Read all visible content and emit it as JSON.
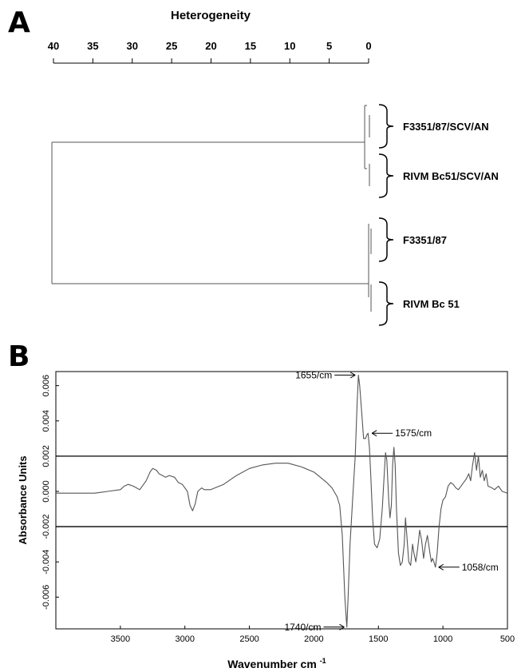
{
  "panels": {
    "a_letter": "A",
    "b_letter": "B"
  },
  "chart_data": [
    {
      "type": "dendrogram",
      "panel": "A",
      "axis_title": "Heterogeneity",
      "axis_ticks": [
        "40",
        "35",
        "30",
        "25",
        "20",
        "15",
        "10",
        "5",
        "0"
      ],
      "axis_range": [
        40,
        0
      ],
      "leaves": [
        "F3351/87/SCV/AN",
        "RIVM Bc51/SCV/AN",
        "F3351/87",
        "RIVM Bc 51"
      ],
      "clusters": [
        {
          "members": [
            "F3351/87/SCV/AN",
            "RIVM Bc51/SCV/AN"
          ],
          "height": 0.2
        },
        {
          "members": [
            "F3351/87",
            "RIVM Bc 51"
          ],
          "height": 0.2
        },
        {
          "members": [
            "F3351/87/SCV/AN",
            "RIVM Bc51/SCV/AN",
            "F3351/87",
            "RIVM Bc 51"
          ],
          "height": 40.2
        }
      ]
    },
    {
      "type": "line",
      "panel": "B",
      "xlabel": "Wavenumber cm",
      "xlabel_sup": "-1",
      "ylabel": "Absorbance Units",
      "xlim": [
        4000,
        500
      ],
      "ylim": [
        -0.0078,
        0.0068
      ],
      "x_ticks": [
        3500,
        3000,
        2500,
        2000,
        1500,
        1000,
        500
      ],
      "y_ticks": [
        "0.006",
        "0.004",
        "0.002",
        "0.000",
        "-0.002",
        "-0.004",
        "-0.006"
      ],
      "y_tick_values": [
        0.006,
        0.004,
        0.002,
        0.0,
        -0.002,
        -0.004,
        -0.006
      ],
      "hlines": [
        0.002,
        -0.002
      ],
      "annotations": [
        {
          "text": "1655/cm",
          "x": 1655,
          "y": 0.0066,
          "side": "left"
        },
        {
          "text": "1575/cm",
          "x": 1575,
          "y": 0.0033,
          "side": "right"
        },
        {
          "text": "1058/cm",
          "x": 1058,
          "y": -0.0043,
          "side": "right"
        },
        {
          "text": "1740/cm",
          "x": 1740,
          "y": -0.0077,
          "side": "left"
        }
      ],
      "series": [
        {
          "points": [
            [
              4000,
              -0.0001
            ],
            [
              3900,
              -0.0001
            ],
            [
              3800,
              -0.0001
            ],
            [
              3700,
              -0.0001
            ],
            [
              3600,
              0.0
            ],
            [
              3500,
              0.0001
            ],
            [
              3470,
              0.0003
            ],
            [
              3440,
              0.0004
            ],
            [
              3400,
              0.0003
            ],
            [
              3350,
              0.0001
            ],
            [
              3300,
              0.0006
            ],
            [
              3270,
              0.0011
            ],
            [
              3250,
              0.0013
            ],
            [
              3220,
              0.0012
            ],
            [
              3200,
              0.001
            ],
            [
              3150,
              0.0008
            ],
            [
              3120,
              0.0009
            ],
            [
              3080,
              0.0008
            ],
            [
              3050,
              0.0005
            ],
            [
              3020,
              0.0004
            ],
            [
              3000,
              0.0002
            ],
            [
              2980,
              0.0
            ],
            [
              2960,
              -0.0008
            ],
            [
              2940,
              -0.0011
            ],
            [
              2920,
              -0.0007
            ],
            [
              2900,
              0.0
            ],
            [
              2870,
              0.0002
            ],
            [
              2850,
              0.0001
            ],
            [
              2800,
              0.0001
            ],
            [
              2700,
              0.0004
            ],
            [
              2600,
              0.0009
            ],
            [
              2500,
              0.0013
            ],
            [
              2400,
              0.0015
            ],
            [
              2300,
              0.0016
            ],
            [
              2250,
              0.0016
            ],
            [
              2200,
              0.0016
            ],
            [
              2100,
              0.0014
            ],
            [
              2000,
              0.0011
            ],
            [
              1950,
              0.0008
            ],
            [
              1900,
              0.0005
            ],
            [
              1860,
              0.0002
            ],
            [
              1820,
              -0.0003
            ],
            [
              1800,
              -0.0008
            ],
            [
              1780,
              -0.0025
            ],
            [
              1760,
              -0.006
            ],
            [
              1745,
              -0.0077
            ],
            [
              1735,
              -0.006
            ],
            [
              1720,
              -0.003
            ],
            [
              1700,
              -0.0005
            ],
            [
              1680,
              0.002
            ],
            [
              1665,
              0.005
            ],
            [
              1655,
              0.0066
            ],
            [
              1645,
              0.006
            ],
            [
              1630,
              0.0045
            ],
            [
              1615,
              0.003
            ],
            [
              1600,
              0.003
            ],
            [
              1590,
              0.0032
            ],
            [
              1580,
              0.0033
            ],
            [
              1570,
              0.0025
            ],
            [
              1560,
              0.001
            ],
            [
              1545,
              -0.0015
            ],
            [
              1530,
              -0.003
            ],
            [
              1510,
              -0.0032
            ],
            [
              1490,
              -0.0027
            ],
            [
              1470,
              -0.001
            ],
            [
              1455,
              0.001
            ],
            [
              1445,
              0.0022
            ],
            [
              1435,
              0.0018
            ],
            [
              1420,
              -0.0005
            ],
            [
              1410,
              -0.0015
            ],
            [
              1400,
              -0.0008
            ],
            [
              1390,
              0.0015
            ],
            [
              1380,
              0.0025
            ],
            [
              1370,
              0.0015
            ],
            [
              1360,
              -0.001
            ],
            [
              1345,
              -0.0035
            ],
            [
              1330,
              -0.0042
            ],
            [
              1315,
              -0.004
            ],
            [
              1300,
              -0.003
            ],
            [
              1290,
              -0.0015
            ],
            [
              1280,
              -0.0025
            ],
            [
              1265,
              -0.004
            ],
            [
              1250,
              -0.0042
            ],
            [
              1235,
              -0.003
            ],
            [
              1225,
              -0.0035
            ],
            [
              1210,
              -0.004
            ],
            [
              1195,
              -0.0032
            ],
            [
              1180,
              -0.0022
            ],
            [
              1165,
              -0.0028
            ],
            [
              1150,
              -0.0038
            ],
            [
              1135,
              -0.003
            ],
            [
              1120,
              -0.0025
            ],
            [
              1105,
              -0.0033
            ],
            [
              1090,
              -0.004
            ],
            [
              1080,
              -0.0038
            ],
            [
              1070,
              -0.004
            ],
            [
              1058,
              -0.0043
            ],
            [
              1045,
              -0.0035
            ],
            [
              1030,
              -0.002
            ],
            [
              1015,
              -0.001
            ],
            [
              1000,
              -0.0005
            ],
            [
              980,
              -0.0003
            ],
            [
              960,
              0.0003
            ],
            [
              940,
              0.0005
            ],
            [
              920,
              0.0004
            ],
            [
              900,
              0.0002
            ],
            [
              880,
              0.0001
            ],
            [
              860,
              0.0003
            ],
            [
              840,
              0.0005
            ],
            [
              820,
              0.0007
            ],
            [
              800,
              0.001
            ],
            [
              785,
              0.0006
            ],
            [
              770,
              0.0015
            ],
            [
              755,
              0.0022
            ],
            [
              740,
              0.0012
            ],
            [
              725,
              0.002
            ],
            [
              710,
              0.0008
            ],
            [
              695,
              0.0012
            ],
            [
              680,
              0.0006
            ],
            [
              665,
              0.001
            ],
            [
              650,
              0.0003
            ],
            [
              620,
              0.0002
            ],
            [
              600,
              0.0001
            ],
            [
              570,
              0.0003
            ],
            [
              540,
              0.0
            ],
            [
              500,
              -0.0001
            ]
          ]
        }
      ]
    }
  ]
}
